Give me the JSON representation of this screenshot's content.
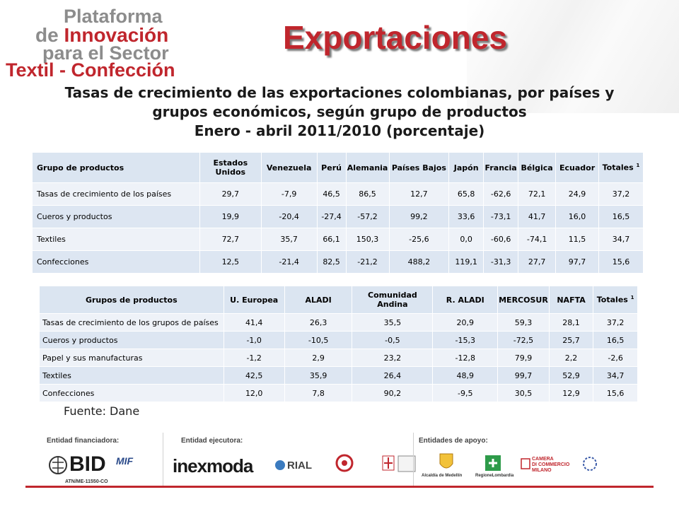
{
  "logo": {
    "line1": "Plataforma",
    "line2a": "de ",
    "line2b": "Innovación",
    "line3": "para el Sector",
    "line4": "Textil - Confección"
  },
  "title": "Exportaciones",
  "subtitle": {
    "line1": "Tasas de crecimiento de las exportaciones  colombianas, por países y",
    "line2": "grupos económicos, según grupo de productos",
    "line3": "Enero - abril 2011/2010 (porcentaje)"
  },
  "table1": {
    "headers": [
      "Grupo de productos",
      "Estados Unidos",
      "Venezuela",
      "Perú",
      "Alemania",
      "Países Bajos",
      "Japón",
      "Francia",
      "Bélgica",
      "Ecuador",
      "Totales"
    ],
    "totals_sup": "1",
    "rows": [
      [
        "Tasas de crecimiento de los países",
        "29,7",
        "-7,9",
        "46,5",
        "86,5",
        "12,7",
        "65,8",
        "-62,6",
        "72,1",
        "24,9",
        "37,2"
      ],
      [
        "Cueros y productos",
        "19,9",
        "-20,4",
        "-27,4",
        "-57,2",
        "99,2",
        "33,6",
        "-73,1",
        "41,7",
        "16,0",
        "16,5"
      ],
      [
        "Textiles",
        "72,7",
        "35,7",
        "66,1",
        "150,3",
        "-25,6",
        "0,0",
        "-60,6",
        "-74,1",
        "11,5",
        "34,7"
      ],
      [
        "Confecciones",
        "12,5",
        "-21,4",
        "82,5",
        "-21,2",
        "488,2",
        "119,1",
        "-31,3",
        "27,7",
        "97,7",
        "15,6"
      ]
    ]
  },
  "table2": {
    "headers": [
      "Grupos de  productos",
      "U. Europea",
      "ALADI",
      "Comunidad Andina",
      "R. ALADI",
      "MERCOSUR",
      "NAFTA",
      "Totales"
    ],
    "totals_sup": "1",
    "rows": [
      [
        "Tasas de crecimiento de los grupos de países",
        "41,4",
        "26,3",
        "35,5",
        "20,9",
        "59,3",
        "28,1",
        "37,2"
      ],
      [
        "Cueros y productos",
        "-1,0",
        "-10,5",
        "-0,5",
        "-15,3",
        "-72,5",
        "25,7",
        "16,5"
      ],
      [
        "Papel y sus manufacturas",
        "-1,2",
        "2,9",
        "23,2",
        "-12,8",
        "79,9",
        "2,2",
        "-2,6"
      ],
      [
        "Textiles",
        "42,5",
        "35,9",
        "26,4",
        "48,9",
        "99,7",
        "52,9",
        "34,7"
      ],
      [
        "Confecciones",
        "12,0",
        "7,8",
        "90,2",
        "-9,5",
        "30,5",
        "12,9",
        "15,6"
      ]
    ]
  },
  "source": "Fuente: Dane",
  "footer": {
    "financiadora_label": "Entidad financiadora:",
    "ejecutora_label": "Entidad ejecutora:",
    "apoyo_label": "Entidades de apoyo:",
    "bid": "BID",
    "mif": "MIF",
    "atn": "ATN/ME-11550-CO",
    "inexmoda": "inexmoda",
    "rial": "RIAL",
    "alcaldia": "Alcaldía de Medellín",
    "regione": "RegioneLombardia",
    "camera1": "CAMERA",
    "camera2": "DI COMMERCIO",
    "camera3": "MILANO"
  },
  "colors": {
    "accent_red": "#c0262d",
    "table_header": "#dbe5f1",
    "row_light": "#eef2f8",
    "row_dark": "#dde6f2"
  }
}
